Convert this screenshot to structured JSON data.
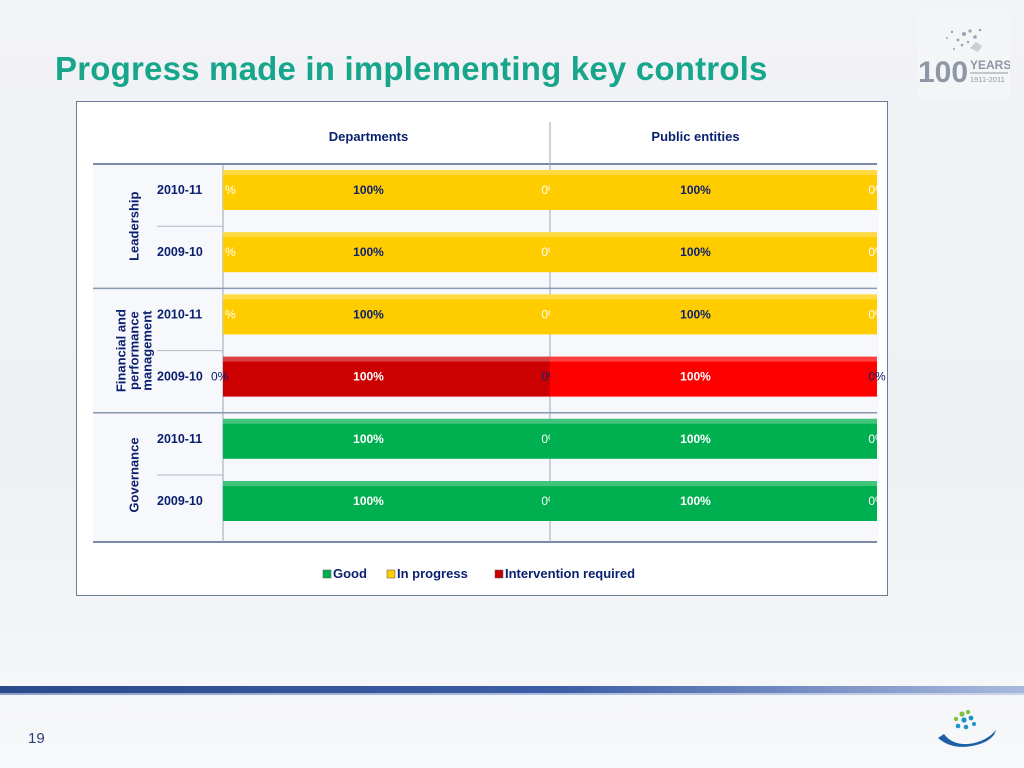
{
  "slide": {
    "title": "Progress made in implementing key controls",
    "page_number": "19",
    "anniversary_logo": {
      "number": "100",
      "word": "YEARS",
      "years": "1911-2011"
    }
  },
  "colors": {
    "title": "#17a68c",
    "good": "#00b050",
    "in_progress": "#ffcc00",
    "intervention_required": "#cc0000",
    "intervention_required_bright": "#ff0000",
    "text_navy": "#0a1f6e"
  },
  "chart_data": {
    "type": "bar",
    "orientation": "horizontal-stacked-100",
    "columns": [
      "Departments",
      "Public entities"
    ],
    "groups": [
      {
        "label": "Leadership",
        "label_lines": [
          "Leadership"
        ],
        "rows": [
          {
            "year": "2010-11",
            "status": "In progress"
          },
          {
            "year": "2009-10",
            "status": "In progress"
          }
        ]
      },
      {
        "label": "Financial and performance management",
        "label_lines": [
          "Financial and",
          "performance",
          "management"
        ],
        "rows": [
          {
            "year": "2010-11",
            "status": "In progress"
          },
          {
            "year": "2009-10",
            "status": "Intervention required"
          }
        ]
      },
      {
        "label": "Governance",
        "label_lines": [
          "Governance"
        ],
        "rows": [
          {
            "year": "2010-11",
            "status": "Good"
          },
          {
            "year": "2009-10",
            "status": "Good"
          }
        ]
      }
    ],
    "series": [
      {
        "name": "Good",
        "color": "#00b050",
        "departments": [
          0,
          0,
          0,
          0,
          100,
          100
        ],
        "public_entities": [
          0,
          0,
          0,
          0,
          100,
          100
        ]
      },
      {
        "name": "In progress",
        "color": "#ffcc00",
        "departments": [
          100,
          100,
          100,
          0,
          0,
          0
        ],
        "public_entities": [
          100,
          100,
          100,
          0,
          0,
          0
        ]
      },
      {
        "name": "Intervention required",
        "color": "#cc0000",
        "departments": [
          0,
          0,
          0,
          100,
          0,
          0
        ],
        "public_entities": [
          0,
          0,
          0,
          100,
          0,
          0
        ]
      }
    ],
    "data_labels": {
      "value": "100%",
      "zero": "0%",
      "zero_truncated": "%"
    },
    "legend": {
      "placement": "bottom-center",
      "items": [
        "Good",
        "In progress",
        "Intervention required"
      ]
    }
  }
}
